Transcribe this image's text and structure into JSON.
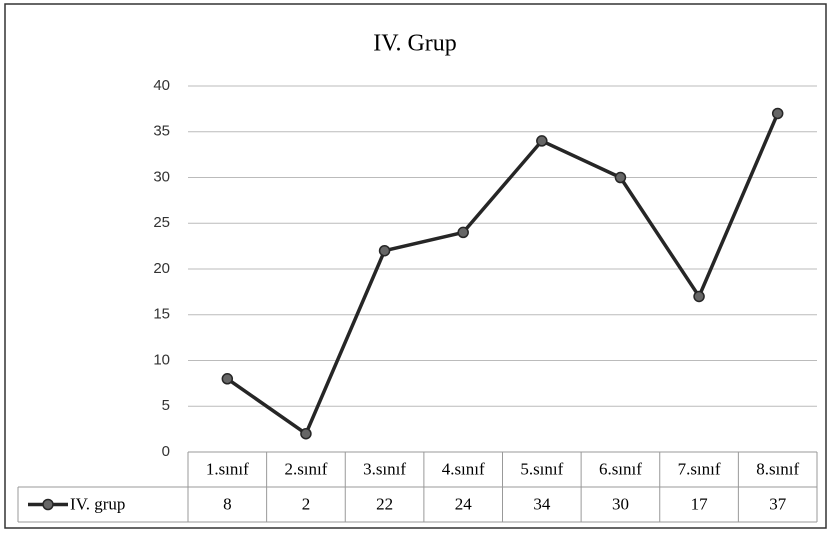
{
  "chart_data": {
    "type": "line",
    "title": "IV. Grup",
    "categories": [
      "1.sınıf",
      "2.sınıf",
      "3.sınıf",
      "4.sınıf",
      "5.sınıf",
      "6.sınıf",
      "7.sınıf",
      "8.sınıf"
    ],
    "series": [
      {
        "name": "IV. grup",
        "color": "#262626",
        "values": [
          8,
          2,
          22,
          24,
          34,
          30,
          17,
          37
        ]
      }
    ],
    "ylim": [
      0,
      40
    ],
    "yticks": [
      0,
      5,
      10,
      15,
      20,
      25,
      30,
      35,
      40
    ],
    "grid": true
  }
}
